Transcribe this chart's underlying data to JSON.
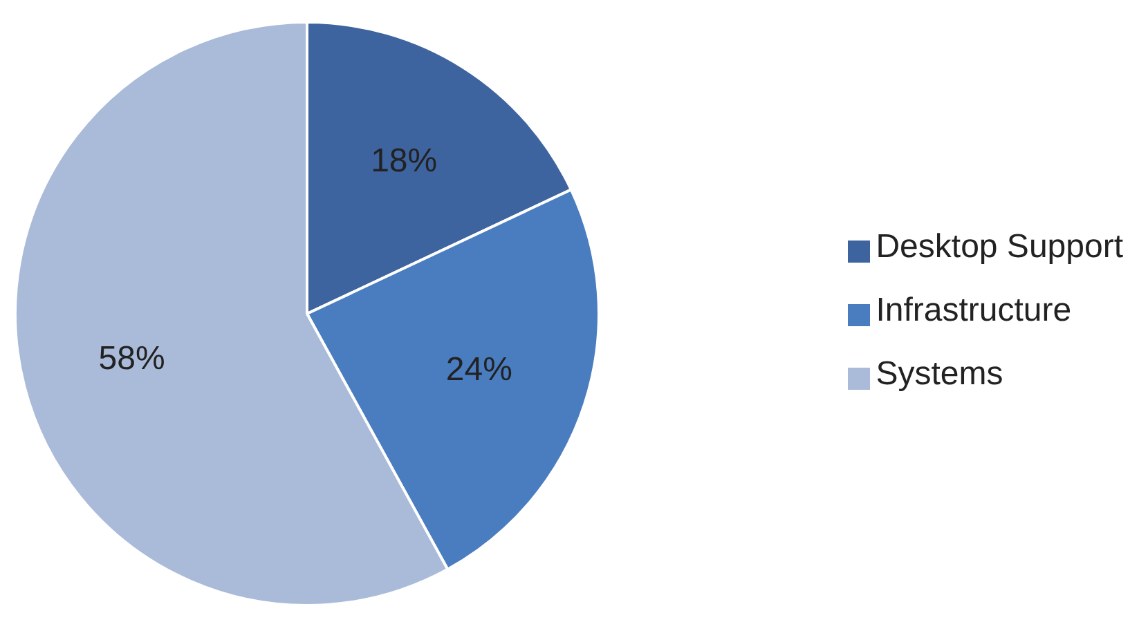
{
  "chart_data": {
    "type": "pie",
    "categories": [
      "Desktop Support",
      "Infrastructure",
      "Systems"
    ],
    "values": [
      18,
      24,
      58
    ],
    "colors": [
      "#3e64a0",
      "#4a7dc0",
      "#a9bbd9"
    ],
    "value_labels": [
      "18%",
      "24%",
      "58%"
    ],
    "legend": "right"
  }
}
